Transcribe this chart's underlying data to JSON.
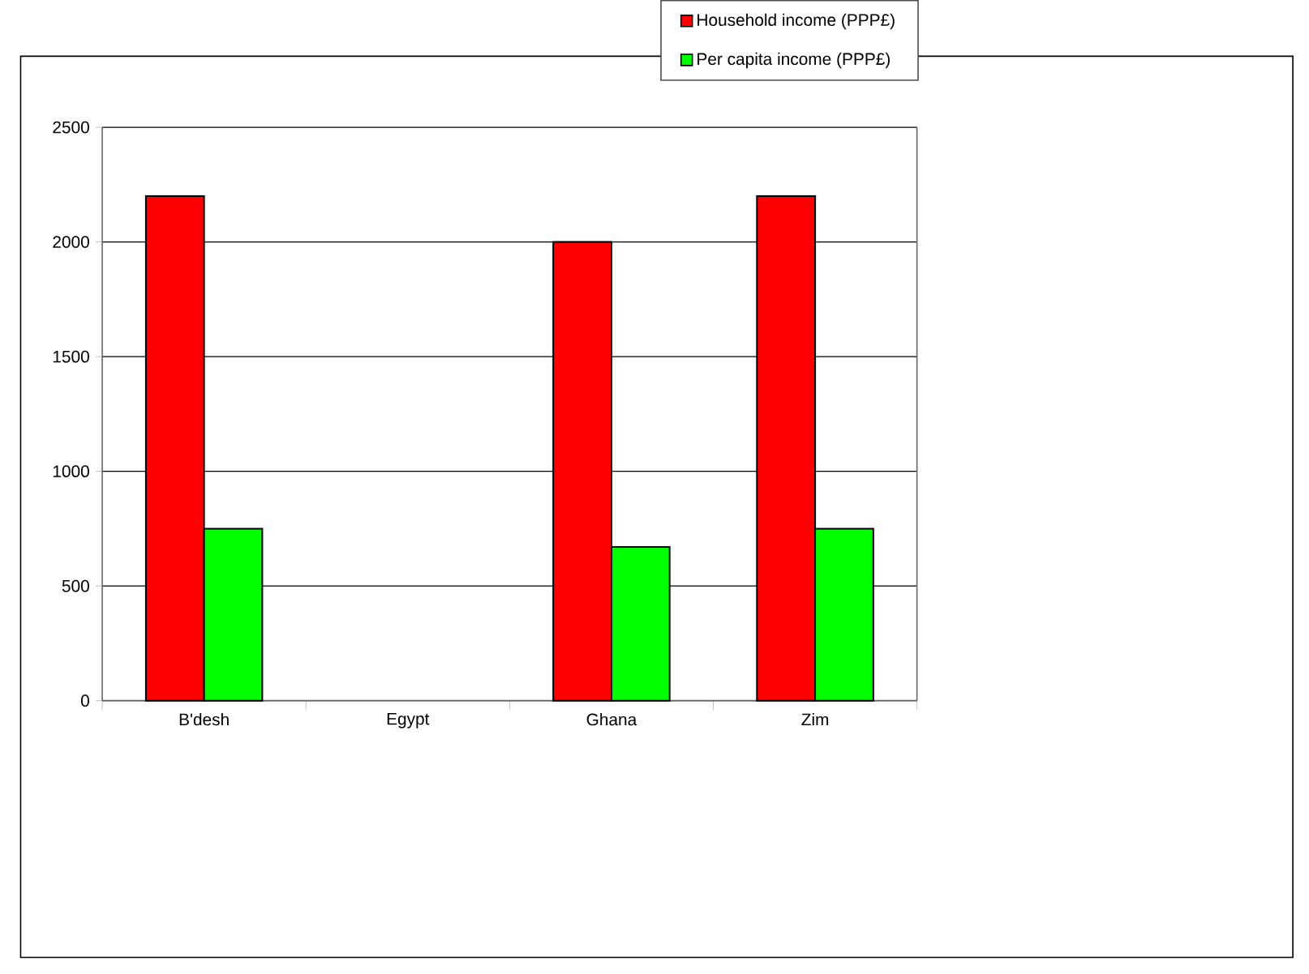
{
  "chart_data": {
    "type": "bar",
    "categories": [
      "B'desh",
      "Egypt",
      "Ghana",
      "Zim"
    ],
    "series": [
      {
        "name": "Household income (PPP£)",
        "color": "#ff0000",
        "values": [
          2200,
          null,
          2000,
          2200
        ]
      },
      {
        "name": "Per capita income (PPP£)",
        "color": "#00ff00",
        "values": [
          750,
          null,
          670,
          750
        ]
      }
    ],
    "ylim": [
      0,
      2500
    ],
    "yticks": [
      0,
      500,
      1000,
      1500,
      2000,
      2500
    ],
    "grid": "y",
    "legend": "top right"
  }
}
